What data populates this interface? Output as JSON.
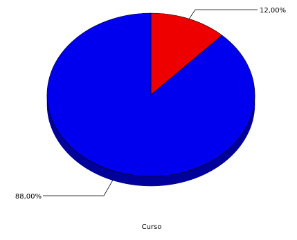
{
  "chart_data": {
    "type": "pie",
    "style": "3d",
    "title": "",
    "xlabel": "Curso",
    "ylabel": "",
    "legend": "none",
    "grid": false,
    "slices": [
      {
        "label": "12,00%",
        "value": 12.0,
        "color": "#ee0000",
        "side_color": "#9a0000"
      },
      {
        "label": "88,00%",
        "value": 88.0,
        "color": "#0000ee",
        "side_color": "#00009a"
      }
    ]
  }
}
